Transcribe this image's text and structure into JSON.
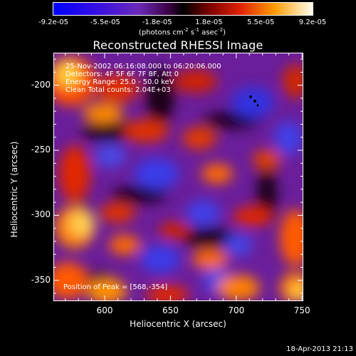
{
  "colorbar": {
    "tick_labels": [
      "-9.2e-05",
      "-5.5e-05",
      "-1.8e-05",
      "1.8e-05",
      "5.5e-05",
      "9.2e-05"
    ],
    "unit_main": "(photons cm",
    "unit_sup1": "-2",
    "unit_mid": " s",
    "unit_sup2": "-1",
    "unit_end": " asec",
    "unit_sup3": "-2",
    "unit_close": ")",
    "range": [
      -9.2e-05,
      9.2e-05
    ]
  },
  "chart_data": {
    "type": "heatmap",
    "title": "Reconstructed RHESSI Image",
    "xlabel": "Heliocentric X (arcsec)",
    "ylabel": "Heliocentric Y (arcsec)",
    "xlim": [
      561,
      751
    ],
    "ylim": [
      -366,
      -175
    ],
    "x_ticks": [
      600,
      650,
      700,
      750
    ],
    "y_ticks": [
      -200,
      -250,
      -300,
      -350
    ],
    "annotations": {
      "time": "25-Nov-2002 06:16:08.000 to 06:20:06.000",
      "detectors": "Detectors: 4F 5F 6F 7F 8F, Att 0",
      "energy": "Energy Range: 25.0 - 50.0 keV",
      "clean": "Clean    Total counts: 2.04E+03",
      "peak": "Position of Peak = [568,-354]"
    },
    "peak": [
      568,
      -354
    ]
  },
  "footer": {
    "date": "18-Apr-2013 21:13"
  }
}
